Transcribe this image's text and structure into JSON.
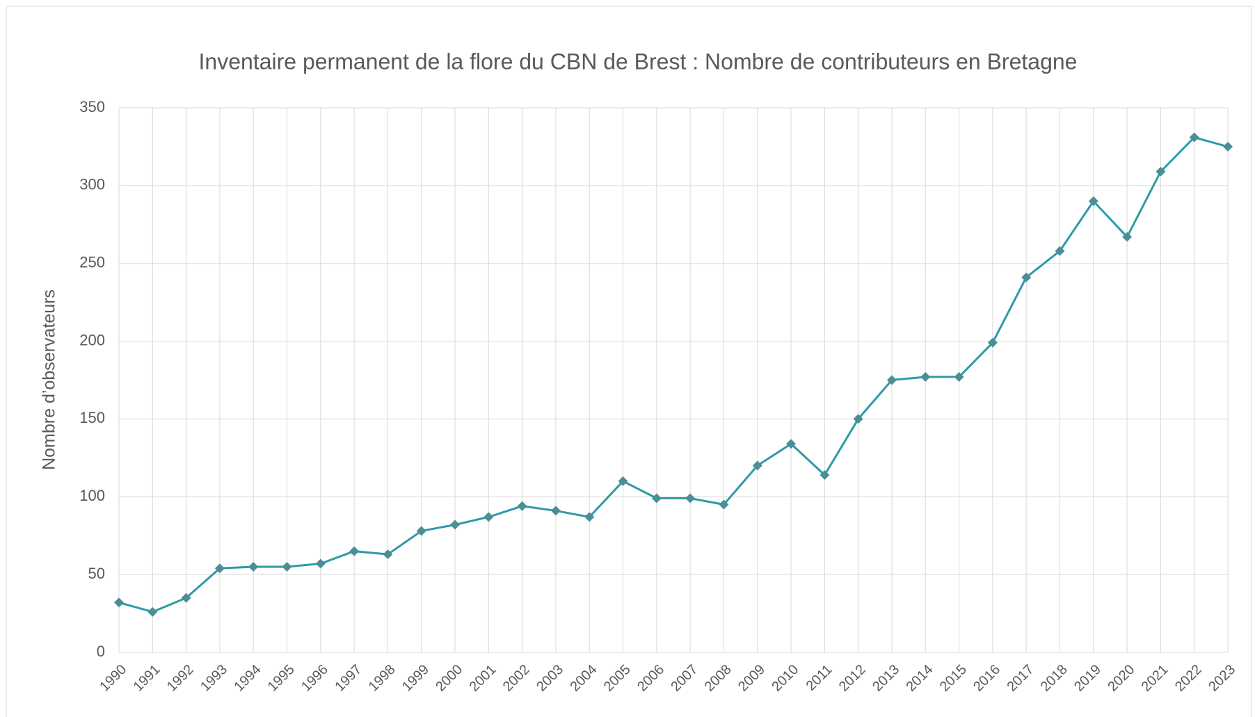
{
  "chart_data": {
    "type": "line",
    "title": "Inventaire permanent de la flore du CBN de Brest : Nombre de contributeurs en Bretagne",
    "y_label": "Nombre d’observateurs",
    "categories": [
      "1990",
      "1991",
      "1992",
      "1993",
      "1994",
      "1995",
      "1996",
      "1997",
      "1998",
      "1999",
      "2000",
      "2001",
      "2002",
      "2003",
      "2004",
      "2005",
      "2006",
      "2007",
      "2008",
      "2009",
      "2010",
      "2011",
      "2012",
      "2013",
      "2014",
      "2015",
      "2016",
      "2017",
      "2018",
      "2019",
      "2020",
      "2021",
      "2022",
      "2023"
    ],
    "series": [
      {
        "name": "Nombre d’observateurs",
        "color": "#2e9aa6",
        "marker_color": "#4b8e95",
        "values": [
          32,
          26,
          35,
          54,
          55,
          55,
          57,
          65,
          63,
          78,
          82,
          87,
          94,
          91,
          87,
          110,
          99,
          99,
          95,
          120,
          134,
          114,
          150,
          175,
          177,
          177,
          199,
          241,
          258,
          290,
          267,
          309,
          331,
          325
        ]
      }
    ],
    "ylim": [
      0,
      350
    ],
    "yticks": [
      0,
      50,
      100,
      150,
      200,
      250,
      300,
      350
    ],
    "grid": true
  }
}
